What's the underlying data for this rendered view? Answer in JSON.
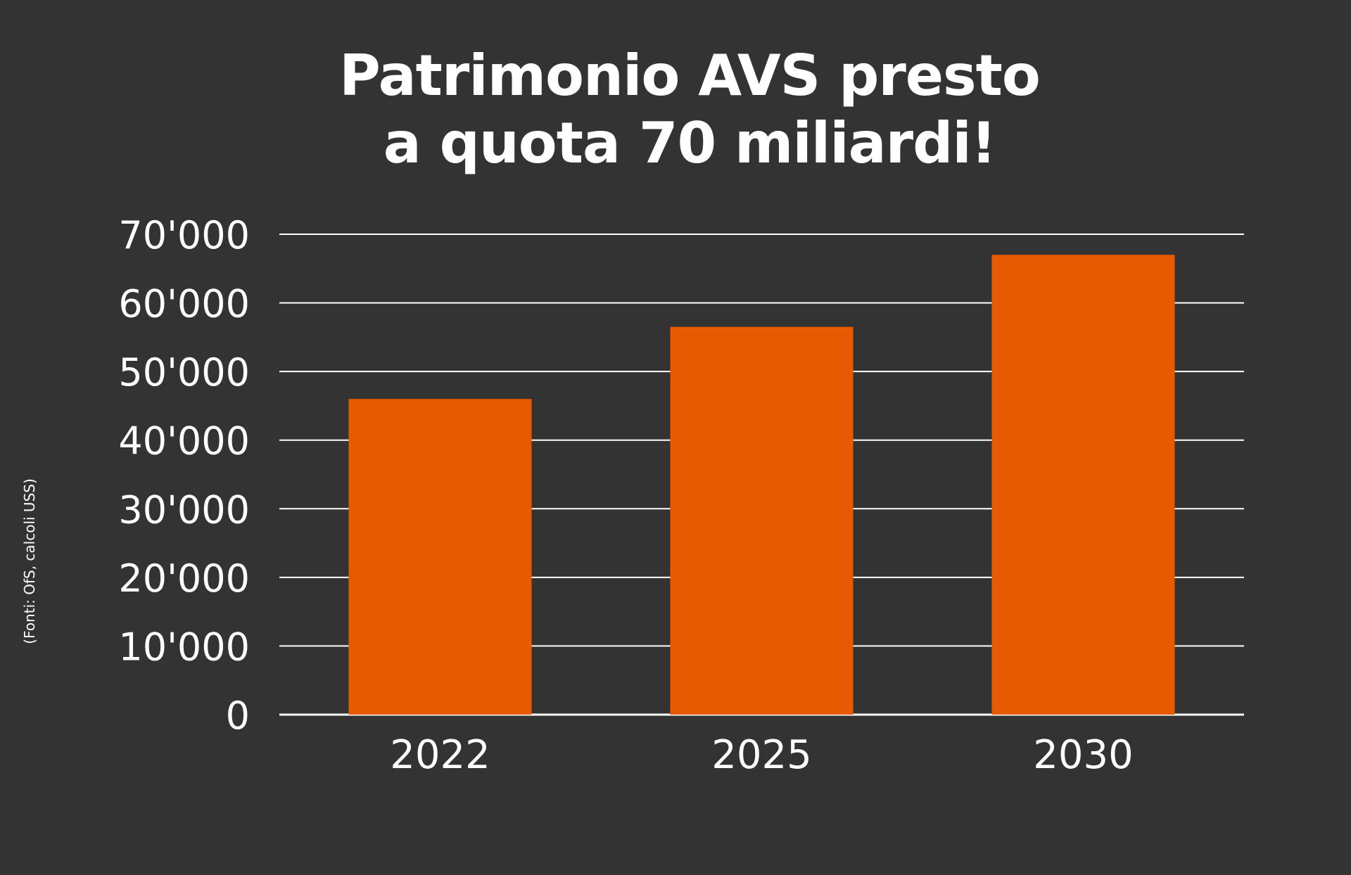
{
  "chart_data": {
    "type": "bar",
    "title_lines": [
      "Patrimonio AVS presto",
      "a quota 70 miliardi!"
    ],
    "categories": [
      "2022",
      "2025",
      "2030"
    ],
    "values": [
      46000,
      56500,
      67000
    ],
    "yticks": [
      "0",
      "10'000",
      "20'000",
      "30'000",
      "40'000",
      "50'000",
      "60'000",
      "70'000"
    ],
    "ylim": [
      0,
      70000
    ],
    "grid": true,
    "source": "(Fonti: OfS, calcoli USS)"
  },
  "colors": {
    "background": "#333333",
    "bar": "#e85a00",
    "grid": "#ffffff",
    "text": "#ffffff"
  }
}
